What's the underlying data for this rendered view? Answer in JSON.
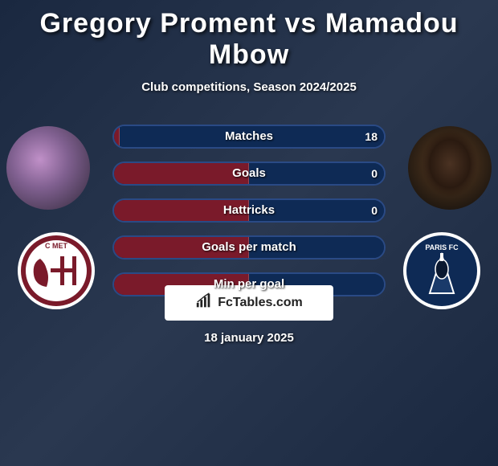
{
  "title": "Gregory Proment vs Mamadou Mbow",
  "subtitle": "Club competitions, Season 2024/2025",
  "date": "18 january 2025",
  "brand": "FcTables.com",
  "colors": {
    "left": "#7a1a2a",
    "right": "#0e2a55",
    "border_left": "#b23a4a",
    "border_right": "#2a4a85",
    "text": "#ffffff",
    "badge_bg": "#ffffff"
  },
  "bars": [
    {
      "label": "Matches",
      "left_val": "",
      "right_val": "18",
      "left_pct": 2,
      "right_pct": 98
    },
    {
      "label": "Goals",
      "left_val": "",
      "right_val": "0",
      "left_pct": 50,
      "right_pct": 50
    },
    {
      "label": "Hattricks",
      "left_val": "",
      "right_val": "0",
      "left_pct": 50,
      "right_pct": 50
    },
    {
      "label": "Goals per match",
      "left_val": "",
      "right_val": "",
      "left_pct": 50,
      "right_pct": 50
    },
    {
      "label": "Min per goal",
      "left_val": "",
      "right_val": "",
      "left_pct": 50,
      "right_pct": 50
    }
  ],
  "clubs": {
    "left": {
      "name": "FC Metz",
      "primary": "#7a1a2a",
      "secondary": "#ffffff",
      "label": "METZ"
    },
    "right": {
      "name": "Paris FC",
      "primary": "#0e2a55",
      "secondary": "#ffffff",
      "label": "PARIS FC"
    }
  }
}
